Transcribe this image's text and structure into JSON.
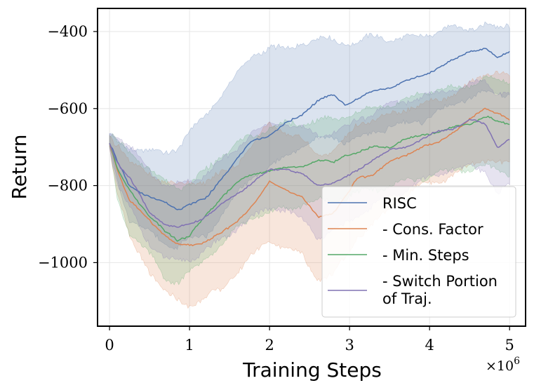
{
  "chart_data": {
    "type": "line",
    "title": "",
    "xlabel": "Training Steps",
    "ylabel": "Return",
    "x_multiplier_label": "×10",
    "x_multiplier_exp": "6",
    "xlim": [
      -0.15,
      5.2
    ],
    "ylim": [
      -1165,
      -340
    ],
    "xticks": [
      0,
      1,
      2,
      3,
      4,
      5
    ],
    "xtick_labels": [
      "0",
      "1",
      "2",
      "3",
      "4",
      "5"
    ],
    "yticks": [
      -400,
      -600,
      -800,
      -1000
    ],
    "ytick_labels": [
      "−400",
      "−600",
      "−800",
      "−1000"
    ],
    "grid": true,
    "legend_position": "lower-right",
    "series": [
      {
        "name": "RISC",
        "color": "#4c72b0",
        "x": [
          0,
          0.1,
          0.25,
          0.5,
          0.7,
          0.85,
          1.0,
          1.2,
          1.4,
          1.6,
          1.8,
          2.0,
          2.2,
          2.4,
          2.6,
          2.8,
          2.95,
          3.1,
          3.3,
          3.5,
          3.7,
          3.9,
          4.1,
          4.3,
          4.5,
          4.7,
          4.85,
          5.0
        ],
        "mean": [
          -690,
          -740,
          -800,
          -830,
          -845,
          -860,
          -850,
          -835,
          -780,
          -730,
          -680,
          -670,
          -640,
          -615,
          -580,
          -565,
          -590,
          -575,
          -555,
          -545,
          -530,
          -515,
          -495,
          -475,
          -450,
          -445,
          -470,
          -450
        ],
        "lower": [
          -700,
          -790,
          -890,
          -920,
          -950,
          -960,
          -940,
          -930,
          -880,
          -820,
          -770,
          -760,
          -720,
          -700,
          -680,
          -670,
          -690,
          -680,
          -660,
          -650,
          -640,
          -630,
          -610,
          -590,
          -570,
          -560,
          -560,
          -560
        ],
        "upper": [
          -665,
          -690,
          -700,
          -710,
          -715,
          -700,
          -660,
          -620,
          -560,
          -510,
          -460,
          -440,
          -450,
          -430,
          -420,
          -420,
          -430,
          -430,
          -410,
          -420,
          -420,
          -410,
          -400,
          -390,
          -390,
          -385,
          -390,
          -380
        ]
      },
      {
        "name": "- Cons. Factor",
        "color": "#dd8452",
        "x": [
          0,
          0.1,
          0.25,
          0.5,
          0.7,
          0.85,
          1.0,
          1.2,
          1.4,
          1.6,
          1.8,
          2.0,
          2.2,
          2.4,
          2.6,
          2.8,
          2.95,
          3.1,
          3.3,
          3.5,
          3.7,
          3.9,
          4.1,
          4.3,
          4.5,
          4.7,
          4.85,
          5.0
        ],
        "mean": [
          -690,
          -760,
          -840,
          -890,
          -930,
          -955,
          -955,
          -945,
          -925,
          -890,
          -850,
          -790,
          -810,
          -830,
          -880,
          -870,
          -830,
          -780,
          -770,
          -740,
          -720,
          -700,
          -690,
          -660,
          -630,
          -600,
          -610,
          -630
        ],
        "lower": [
          -700,
          -820,
          -940,
          -1020,
          -1080,
          -1100,
          -1110,
          -1090,
          -1070,
          -1020,
          -980,
          -940,
          -960,
          -980,
          -1040,
          -1030,
          -990,
          -930,
          -900,
          -860,
          -820,
          -800,
          -790,
          -770,
          -750,
          -730,
          -740,
          -750
        ],
        "upper": [
          -670,
          -690,
          -740,
          -770,
          -790,
          -800,
          -790,
          -790,
          -770,
          -740,
          -690,
          -640,
          -660,
          -680,
          -720,
          -710,
          -680,
          -640,
          -630,
          -620,
          -600,
          -590,
          -580,
          -560,
          -540,
          -510,
          -500,
          -520
        ]
      },
      {
        "name": "- Min. Steps",
        "color": "#55a868",
        "x": [
          0,
          0.1,
          0.25,
          0.5,
          0.7,
          0.85,
          1.0,
          1.2,
          1.4,
          1.6,
          1.8,
          2.0,
          2.2,
          2.4,
          2.6,
          2.8,
          2.95,
          3.1,
          3.3,
          3.5,
          3.7,
          3.9,
          4.1,
          4.3,
          4.5,
          4.7,
          4.85,
          5.0
        ],
        "mean": [
          -690,
          -760,
          -810,
          -880,
          -920,
          -940,
          -930,
          -880,
          -830,
          -790,
          -770,
          -760,
          -755,
          -750,
          -735,
          -740,
          -720,
          -715,
          -700,
          -700,
          -680,
          -670,
          -660,
          -650,
          -640,
          -620,
          -635,
          -640
        ],
        "lower": [
          -700,
          -840,
          -920,
          -980,
          -1040,
          -1050,
          -1030,
          -990,
          -950,
          -910,
          -880,
          -870,
          -860,
          -850,
          -840,
          -840,
          -830,
          -820,
          -810,
          -800,
          -790,
          -780,
          -770,
          -760,
          -760,
          -750,
          -760,
          -770
        ],
        "upper": [
          -670,
          -690,
          -710,
          -760,
          -790,
          -800,
          -800,
          -760,
          -720,
          -690,
          -670,
          -650,
          -640,
          -640,
          -630,
          -630,
          -620,
          -610,
          -600,
          -590,
          -580,
          -560,
          -550,
          -550,
          -540,
          -520,
          -530,
          -530
        ]
      },
      {
        "name": "- Switch Portion of Traj.",
        "name_lines": [
          "- Switch Portion",
          "of Traj."
        ],
        "color": "#8172b3",
        "x": [
          0,
          0.1,
          0.25,
          0.5,
          0.7,
          0.85,
          1.0,
          1.2,
          1.4,
          1.6,
          1.8,
          2.0,
          2.2,
          2.4,
          2.6,
          2.8,
          2.95,
          3.1,
          3.3,
          3.5,
          3.7,
          3.9,
          4.1,
          4.3,
          4.5,
          4.7,
          4.85,
          5.0
        ],
        "mean": [
          -690,
          -740,
          -780,
          -870,
          -900,
          -910,
          -900,
          -880,
          -850,
          -820,
          -790,
          -760,
          -755,
          -770,
          -800,
          -790,
          -780,
          -760,
          -730,
          -710,
          -700,
          -680,
          -660,
          -650,
          -630,
          -640,
          -700,
          -680
        ],
        "lower": [
          -700,
          -800,
          -860,
          -950,
          -990,
          -1000,
          -990,
          -970,
          -940,
          -910,
          -880,
          -860,
          -860,
          -890,
          -930,
          -920,
          -900,
          -880,
          -850,
          -830,
          -810,
          -790,
          -770,
          -760,
          -750,
          -760,
          -820,
          -800
        ],
        "upper": [
          -665,
          -670,
          -700,
          -760,
          -800,
          -800,
          -790,
          -770,
          -740,
          -700,
          -660,
          -640,
          -640,
          -650,
          -670,
          -660,
          -650,
          -630,
          -610,
          -590,
          -580,
          -570,
          -560,
          -550,
          -540,
          -530,
          -560,
          -560
        ]
      }
    ]
  }
}
